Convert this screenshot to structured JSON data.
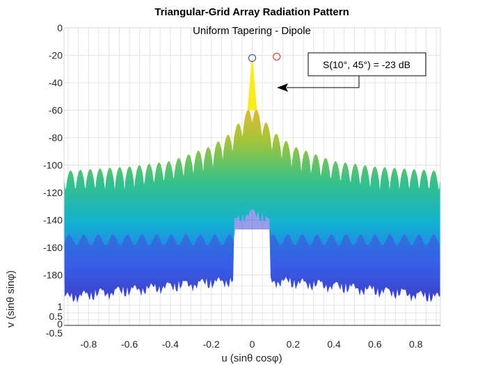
{
  "chart_data": {
    "type": "area",
    "title": "Triangular-Grid Array Radiation Pattern",
    "subtitle": "Uniform Tapering - Dipole",
    "xlabel": "u (sinθ cosφ)",
    "ylabel": "v (sinθ sinφ)",
    "xlim": [
      -0.92,
      0.92
    ],
    "x_ticks": [
      "-0.8",
      "-0.6",
      "-0.4",
      "-0.2",
      "0",
      "0.2",
      "0.4",
      "0.6",
      "0.8"
    ],
    "db_ticks": [
      "0",
      "-20",
      "-40",
      "-60",
      "-80",
      "-100",
      "-120",
      "-140",
      "-160",
      "-180"
    ],
    "v_ticks": [
      "1",
      "0.5",
      "0",
      "-0.5"
    ],
    "grid": true,
    "colormap": [
      "#3e26a8",
      "#2d6ff3",
      "#12b1d2",
      "#35c189",
      "#a6c436",
      "#f1b835",
      "#f9fb15"
    ],
    "envelope_db": {
      "u": [
        -0.9,
        -0.6,
        -0.4,
        -0.2,
        -0.1,
        0.0,
        0.1,
        0.2,
        0.4,
        0.6,
        0.9
      ],
      "top": [
        -104,
        -101,
        -97,
        -86,
        -76,
        -55,
        -75,
        -86,
        -97,
        -101,
        -104
      ],
      "lobe_period_u": 0.048
    },
    "main_beam": {
      "u": 0.0,
      "peak_db": -23
    },
    "markers": [
      {
        "u": 0.0,
        "db": -22,
        "color": "#1f3fbf",
        "label": "blue circle"
      },
      {
        "u": 0.12,
        "db": -21,
        "color": "#d62728",
        "label": "red circle"
      }
    ],
    "annotation": {
      "text": "S(10°, 45°) = -23 dB",
      "target_u": 0.12,
      "target_db": -45
    }
  }
}
